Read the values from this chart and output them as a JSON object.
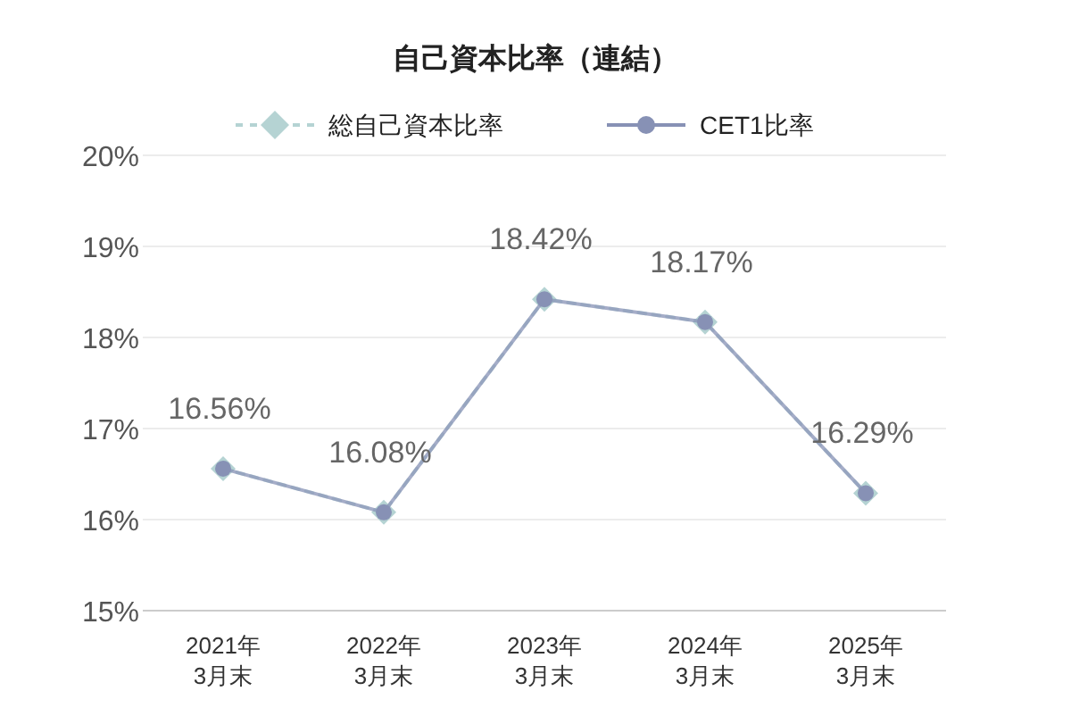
{
  "chart_data": {
    "type": "line",
    "title": "自己資本比率（連結）",
    "categories": [
      "2021年\n3月末",
      "2022年\n3月末",
      "2023年\n3月末",
      "2024年\n3月末",
      "2025年\n3月末"
    ],
    "series": [
      {
        "name": "総自己資本比率",
        "color": "#b5d3d3",
        "marker": "diamond",
        "line_style": "dashed",
        "values": [
          16.56,
          16.08,
          18.42,
          18.17,
          16.29
        ],
        "value_labels": [
          "16.56%",
          "16.08%",
          "18.42%",
          "18.17%",
          "16.29%"
        ]
      },
      {
        "name": "CET1比率",
        "color": "#8791b5",
        "marker": "circle",
        "line_style": "solid",
        "values": [
          16.56,
          16.08,
          18.42,
          18.17,
          16.29
        ]
      }
    ],
    "ylim": [
      15,
      20
    ],
    "yticks": [
      {
        "value": 15,
        "label": "15%"
      },
      {
        "value": 16,
        "label": "16%"
      },
      {
        "value": 17,
        "label": "17%"
      },
      {
        "value": 18,
        "label": "18%"
      },
      {
        "value": 19,
        "label": "19%"
      },
      {
        "value": 20,
        "label": "20%"
      }
    ],
    "grid": "y",
    "legend": "top"
  }
}
